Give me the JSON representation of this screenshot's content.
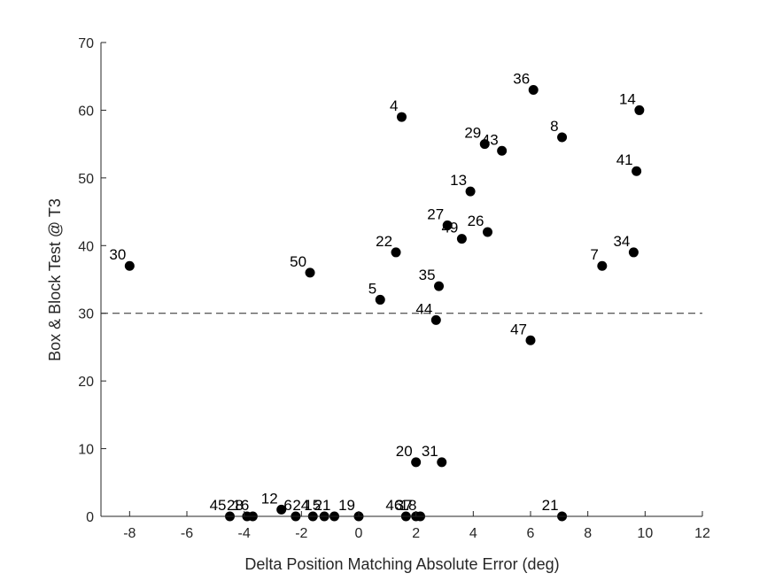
{
  "chart_data": {
    "type": "scatter",
    "xlabel": "Delta Position Matching Absolute Error (deg)",
    "ylabel": "Box & Block Test @ T3",
    "xlim": [
      -9,
      12
    ],
    "ylim": [
      0,
      70
    ],
    "xticks": [
      -8,
      -6,
      -4,
      -2,
      0,
      2,
      4,
      6,
      8,
      10,
      12
    ],
    "yticks": [
      0,
      10,
      20,
      30,
      40,
      50,
      60,
      70
    ],
    "threshold_y": 30,
    "grid": false,
    "marker_color": "#000000",
    "points": [
      {
        "label": "30",
        "x": -8.0,
        "y": 37
      },
      {
        "label": "50",
        "x": -1.7,
        "y": 36
      },
      {
        "label": "5",
        "x": 0.75,
        "y": 32
      },
      {
        "label": "22",
        "x": 1.3,
        "y": 39
      },
      {
        "label": "4",
        "x": 1.5,
        "y": 59
      },
      {
        "label": "36",
        "x": 6.1,
        "y": 63
      },
      {
        "label": "14",
        "x": 9.8,
        "y": 60
      },
      {
        "label": "8",
        "x": 7.1,
        "y": 56
      },
      {
        "label": "29",
        "x": 4.4,
        "y": 55
      },
      {
        "label": "43",
        "x": 5.0,
        "y": 54
      },
      {
        "label": "41",
        "x": 9.7,
        "y": 51
      },
      {
        "label": "13",
        "x": 3.9,
        "y": 48
      },
      {
        "label": "27",
        "x": 3.1,
        "y": 43
      },
      {
        "label": "49",
        "x": 3.6,
        "y": 41
      },
      {
        "label": "26",
        "x": 4.5,
        "y": 42
      },
      {
        "label": "7",
        "x": 8.5,
        "y": 37
      },
      {
        "label": "34",
        "x": 9.6,
        "y": 39
      },
      {
        "label": "35",
        "x": 2.8,
        "y": 34
      },
      {
        "label": "44",
        "x": 2.7,
        "y": 29
      },
      {
        "label": "47",
        "x": 6.0,
        "y": 26
      },
      {
        "label": "20",
        "x": 2.0,
        "y": 8
      },
      {
        "label": "31",
        "x": 2.9,
        "y": 8
      },
      {
        "label": "21",
        "x": 7.1,
        "y": 0
      },
      {
        "label": "12",
        "x": -2.7,
        "y": 1
      },
      {
        "label": "45",
        "x": -4.5,
        "y": 0
      },
      {
        "label": "28",
        "x": -3.9,
        "y": 0
      },
      {
        "label": "16",
        "x": -3.7,
        "y": 0
      },
      {
        "label": "6",
        "x": -2.2,
        "y": 0
      },
      {
        "label": "24",
        "x": -1.6,
        "y": 0
      },
      {
        "label": "15",
        "x": -1.2,
        "y": 0
      },
      {
        "label": "21",
        "x": -0.85,
        "y": 0
      },
      {
        "label": "19",
        "x": 0.0,
        "y": 0
      },
      {
        "label": "46",
        "x": 1.65,
        "y": 0
      },
      {
        "label": "37",
        "x": 2.0,
        "y": 0
      },
      {
        "label": "18",
        "x": 2.15,
        "y": 0
      }
    ]
  }
}
